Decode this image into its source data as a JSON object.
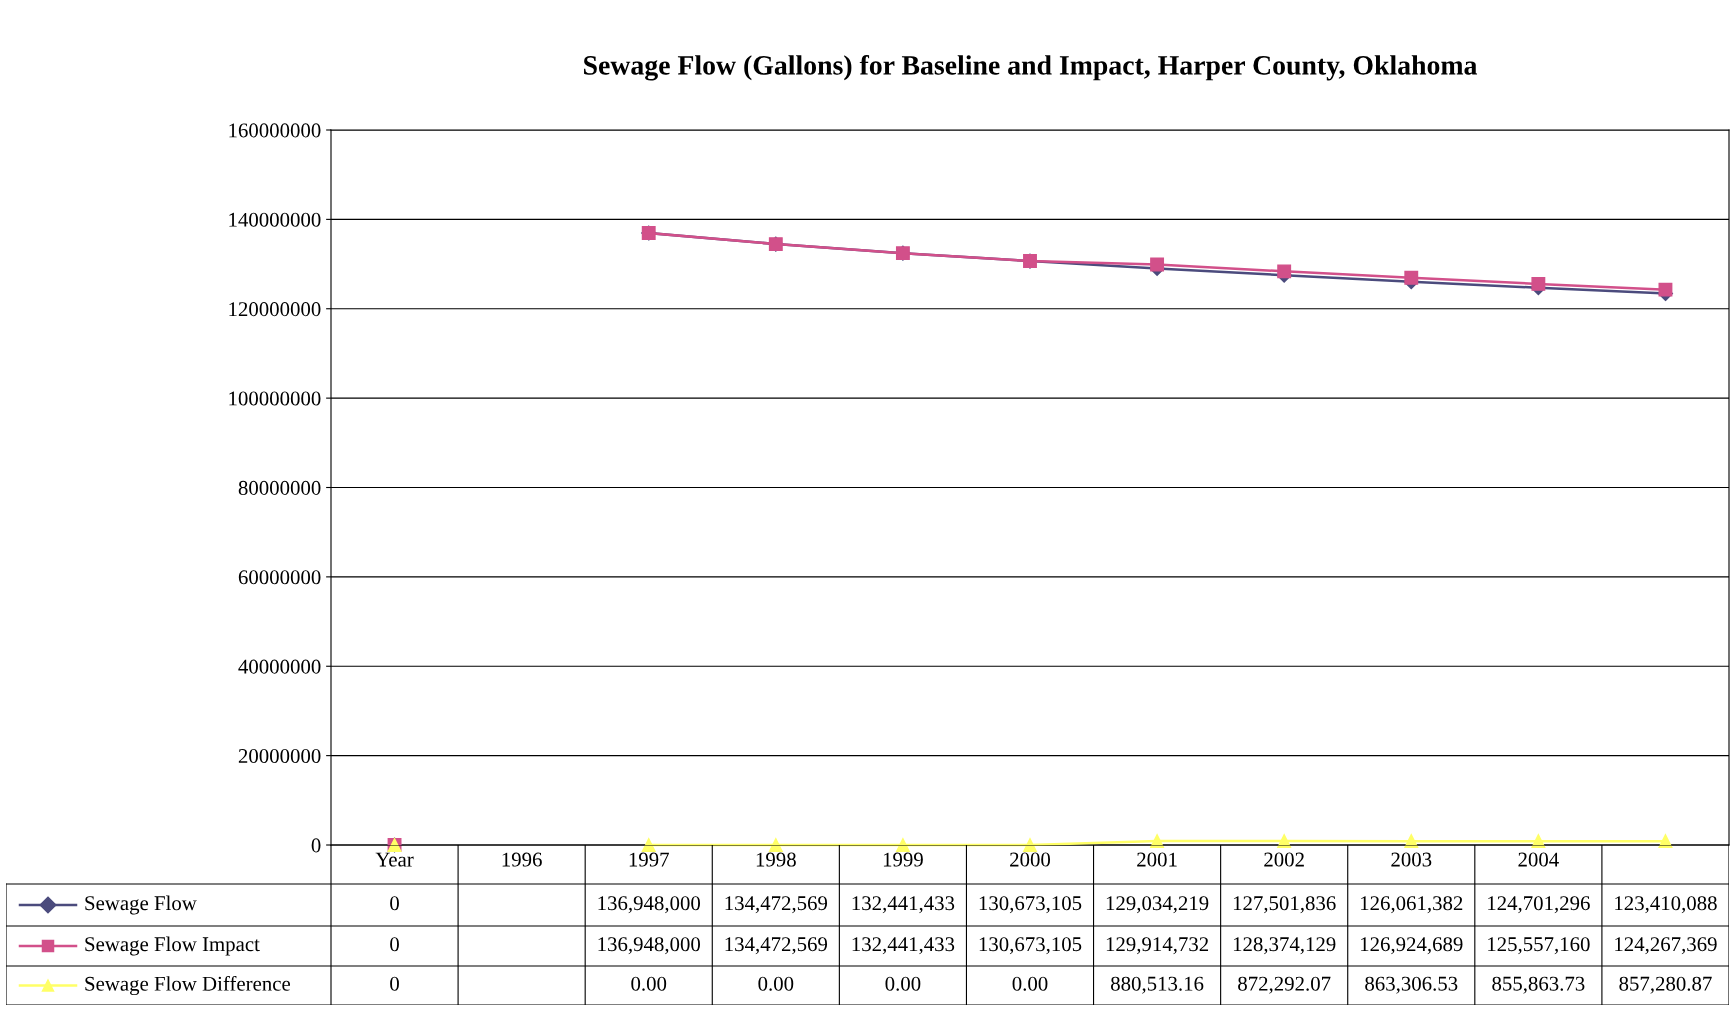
{
  "chart_data": {
    "type": "line",
    "title": "Sewage Flow (Gallons) for Baseline and Impact, Harper County, Oklahoma",
    "categories": [
      "Year",
      "1996",
      "1997",
      "1998",
      "1999",
      "2000",
      "2001",
      "2002",
      "2003",
      "2004",
      null
    ],
    "series": [
      {
        "name": "Sewage Flow",
        "color": "#4b4b7d",
        "marker": "diamond",
        "values": [
          0,
          null,
          136948000,
          134472569,
          132441433,
          130673105,
          129034219,
          127501836,
          126061382,
          124701296,
          123410088
        ],
        "value_labels": [
          "0",
          null,
          "136,948,000",
          "134,472,569",
          "132,441,433",
          "130,673,105",
          "129,034,219",
          "127,501,836",
          "126,061,382",
          "124,701,296",
          "123,410,088"
        ]
      },
      {
        "name": "Sewage Flow Impact",
        "color": "#d2508a",
        "marker": "square",
        "values": [
          0,
          null,
          136948000,
          134472569,
          132441433,
          130673105,
          129914732,
          128374129,
          126924689,
          125557160,
          124267369
        ],
        "value_labels": [
          "0",
          null,
          "136,948,000",
          "134,472,569",
          "132,441,433",
          "130,673,105",
          "129,914,732",
          "128,374,129",
          "126,924,689",
          "125,557,160",
          "124,267,369"
        ]
      },
      {
        "name": "Sewage Flow Difference",
        "color": "#ffff66",
        "marker": "triangle",
        "values": [
          0,
          null,
          0,
          0,
          0,
          0,
          880513.16,
          872292.07,
          863306.53,
          855863.73,
          857280.87
        ],
        "value_labels": [
          "0",
          null,
          "0.00",
          "0.00",
          "0.00",
          "0.00",
          "880,513.16",
          "872,292.07",
          "863,306.53",
          "855,863.73",
          "857,280.87"
        ]
      }
    ],
    "ylim": [
      0,
      160000000
    ],
    "yticks": [
      0,
      20000000,
      40000000,
      60000000,
      80000000,
      100000000,
      120000000,
      140000000,
      160000000
    ],
    "grid": "y",
    "legend": "bottom",
    "line_style": "solid"
  }
}
